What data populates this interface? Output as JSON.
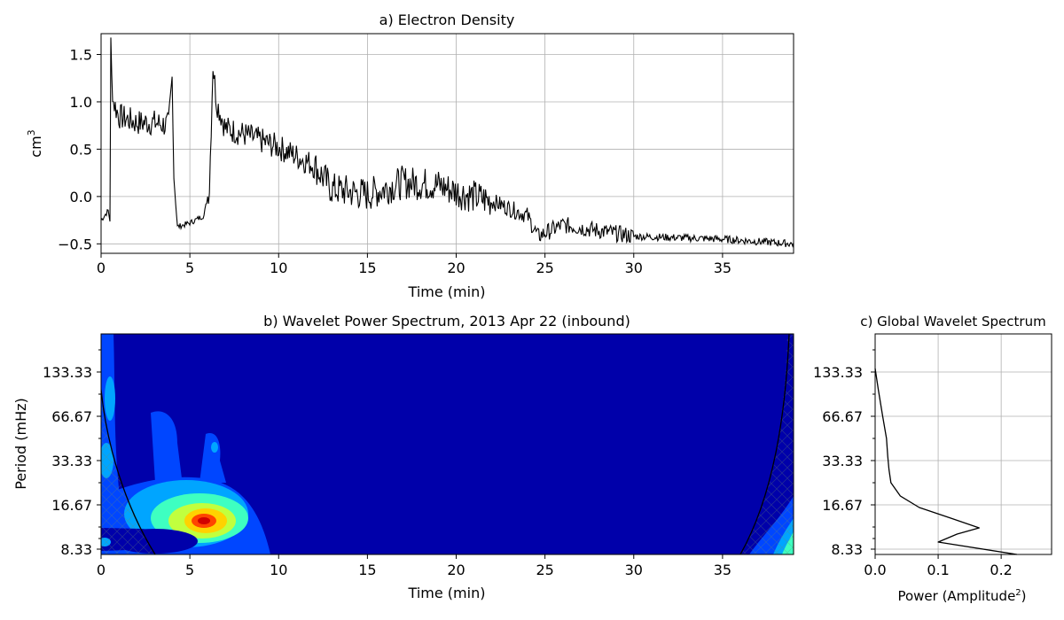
{
  "chart_data": [
    {
      "type": "line",
      "title": "a) Electron Density",
      "xlabel": "Time (min)",
      "ylabel": "cm",
      "ylabel_superscript": "3",
      "xlim": [
        0,
        39
      ],
      "ylim": [
        -0.6,
        1.72
      ],
      "xticks": [
        "0",
        "5",
        "10",
        "15",
        "20",
        "25",
        "30",
        "35"
      ],
      "yticks": [
        "−0.5",
        "0.0",
        "0.5",
        "1.0",
        "1.5"
      ],
      "grid": true,
      "line_color": "#000000",
      "trend_x": [
        0,
        0.4,
        0.5,
        0.55,
        0.6,
        0.7,
        1.0,
        2.0,
        3.0,
        3.8,
        4.0,
        4.1,
        4.3,
        5.0,
        5.8,
        6.1,
        6.3,
        6.5,
        7.0,
        8.0,
        10.0,
        12.0,
        13.0,
        15.0,
        17.0,
        19.0,
        20.0,
        22.0,
        24.0,
        24.6,
        26.0,
        30.0,
        35.0,
        39.0
      ],
      "trend_y": [
        -0.25,
        -0.15,
        -0.25,
        1.6,
        1.25,
        1.0,
        0.85,
        0.78,
        0.78,
        0.75,
        1.25,
        0.2,
        -0.32,
        -0.28,
        -0.2,
        0.1,
        1.4,
        1.0,
        0.72,
        0.66,
        0.52,
        0.33,
        0.08,
        0.02,
        0.15,
        0.12,
        0.05,
        -0.05,
        -0.2,
        -0.42,
        -0.3,
        -0.42,
        -0.45,
        -0.5
      ]
    },
    {
      "type": "heatmap",
      "title": "b) Wavelet Power Spectrum, 2013 Apr 22 (inbound)",
      "xlabel": "Time (min)",
      "ylabel": "Period (mHz)",
      "xlim": [
        0,
        39
      ],
      "xticks": [
        "0",
        "5",
        "10",
        "15",
        "20",
        "25",
        "30",
        "35"
      ],
      "yticks": [
        "133.33",
        "66.67",
        "33.33",
        "16.67",
        "8.33"
      ],
      "colormap": [
        "#0000aa",
        "#0046ff",
        "#00a5ff",
        "#3effc1",
        "#c1ff3e",
        "#ffd200",
        "#ff4400",
        "#d10000",
        "#800000"
      ],
      "cone_of_influence": true
    },
    {
      "type": "line",
      "title": "c) Global Wavelet Spectrum",
      "xlabel": "Power (Amplitude",
      "xlabel_superscript": "2",
      "xlabel_suffix": ")",
      "xlim": [
        0,
        0.28
      ],
      "xticks": [
        "0.0",
        "0.1",
        "0.2"
      ],
      "yticks": [
        "133.33",
        "66.67",
        "33.33",
        "16.67",
        "8.33"
      ],
      "grid": true,
      "power": [
        0.225,
        0.1,
        0.13,
        0.165,
        0.12,
        0.07,
        0.04,
        0.025,
        0.022,
        0.02,
        0.018,
        0.012,
        0.005,
        0.0
      ],
      "line_color": "#000000"
    }
  ]
}
